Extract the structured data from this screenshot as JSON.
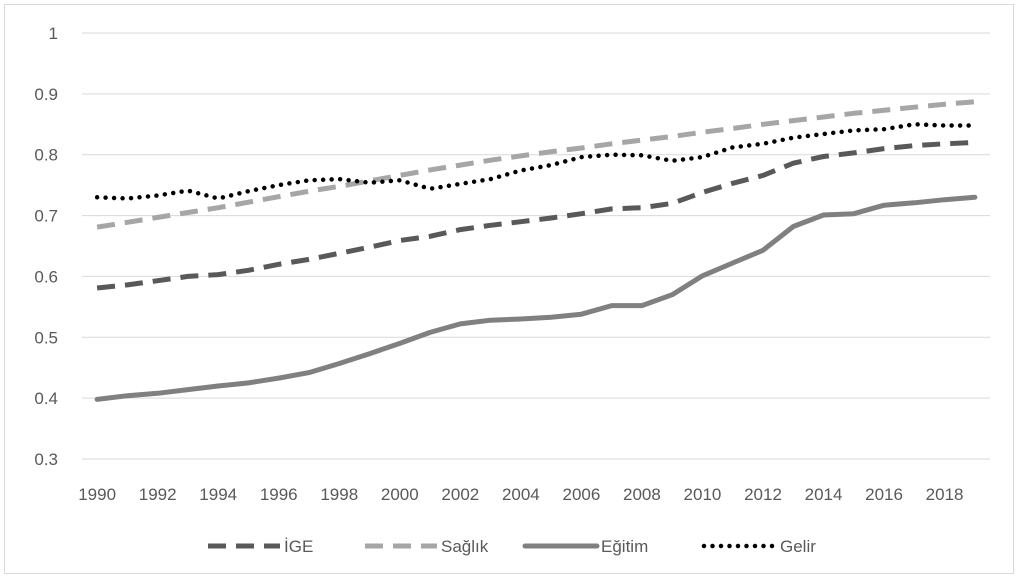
{
  "chart_data": {
    "type": "line",
    "title": "",
    "xlabel": "",
    "ylabel": "",
    "ylim": [
      0.3,
      1.0
    ],
    "yticks": [
      "0.3",
      "0.4",
      "0.5",
      "0.6",
      "0.7",
      "0.8",
      "0.9",
      "1"
    ],
    "xticks": [
      "1990",
      "1992",
      "1994",
      "1996",
      "1998",
      "2000",
      "2002",
      "2004",
      "2006",
      "2008",
      "2010",
      "2012",
      "2014",
      "2016",
      "2018"
    ],
    "x": [
      1990,
      1991,
      1992,
      1993,
      1994,
      1995,
      1996,
      1997,
      1998,
      1999,
      2000,
      2001,
      2002,
      2003,
      2004,
      2005,
      2006,
      2007,
      2008,
      2009,
      2010,
      2011,
      2012,
      2013,
      2014,
      2015,
      2016,
      2017,
      2018,
      2019
    ],
    "grid": true,
    "legend_position": "bottom",
    "series": [
      {
        "name": "İGE",
        "color": "#595959",
        "style": "dash",
        "values": [
          0.581,
          0.586,
          0.593,
          0.6,
          0.603,
          0.61,
          0.62,
          0.628,
          0.638,
          0.648,
          0.659,
          0.666,
          0.677,
          0.684,
          0.69,
          0.696,
          0.703,
          0.711,
          0.713,
          0.72,
          0.738,
          0.753,
          0.766,
          0.786,
          0.797,
          0.803,
          0.81,
          0.815,
          0.818,
          0.82
        ]
      },
      {
        "name": "Sağlık",
        "color": "#a6a6a6",
        "style": "dash",
        "values": [
          0.681,
          0.689,
          0.697,
          0.705,
          0.713,
          0.722,
          0.731,
          0.74,
          0.748,
          0.757,
          0.766,
          0.775,
          0.783,
          0.791,
          0.798,
          0.805,
          0.811,
          0.818,
          0.824,
          0.83,
          0.837,
          0.843,
          0.85,
          0.856,
          0.862,
          0.868,
          0.873,
          0.878,
          0.883,
          0.887
        ]
      },
      {
        "name": "Eğitim",
        "color": "#808080",
        "style": "solid",
        "values": [
          0.398,
          0.404,
          0.408,
          0.414,
          0.42,
          0.425,
          0.433,
          0.442,
          0.457,
          0.473,
          0.49,
          0.508,
          0.522,
          0.528,
          0.53,
          0.533,
          0.538,
          0.552,
          0.552,
          0.57,
          0.601,
          0.622,
          0.643,
          0.682,
          0.701,
          0.703,
          0.717,
          0.721,
          0.726,
          0.73
        ]
      },
      {
        "name": "Gelir",
        "color": "#000000",
        "style": "dot",
        "values": [
          0.73,
          0.728,
          0.733,
          0.741,
          0.728,
          0.74,
          0.75,
          0.758,
          0.76,
          0.754,
          0.758,
          0.744,
          0.752,
          0.76,
          0.774,
          0.783,
          0.796,
          0.8,
          0.799,
          0.79,
          0.796,
          0.812,
          0.818,
          0.828,
          0.834,
          0.84,
          0.842,
          0.85,
          0.848,
          0.848
        ]
      }
    ]
  }
}
